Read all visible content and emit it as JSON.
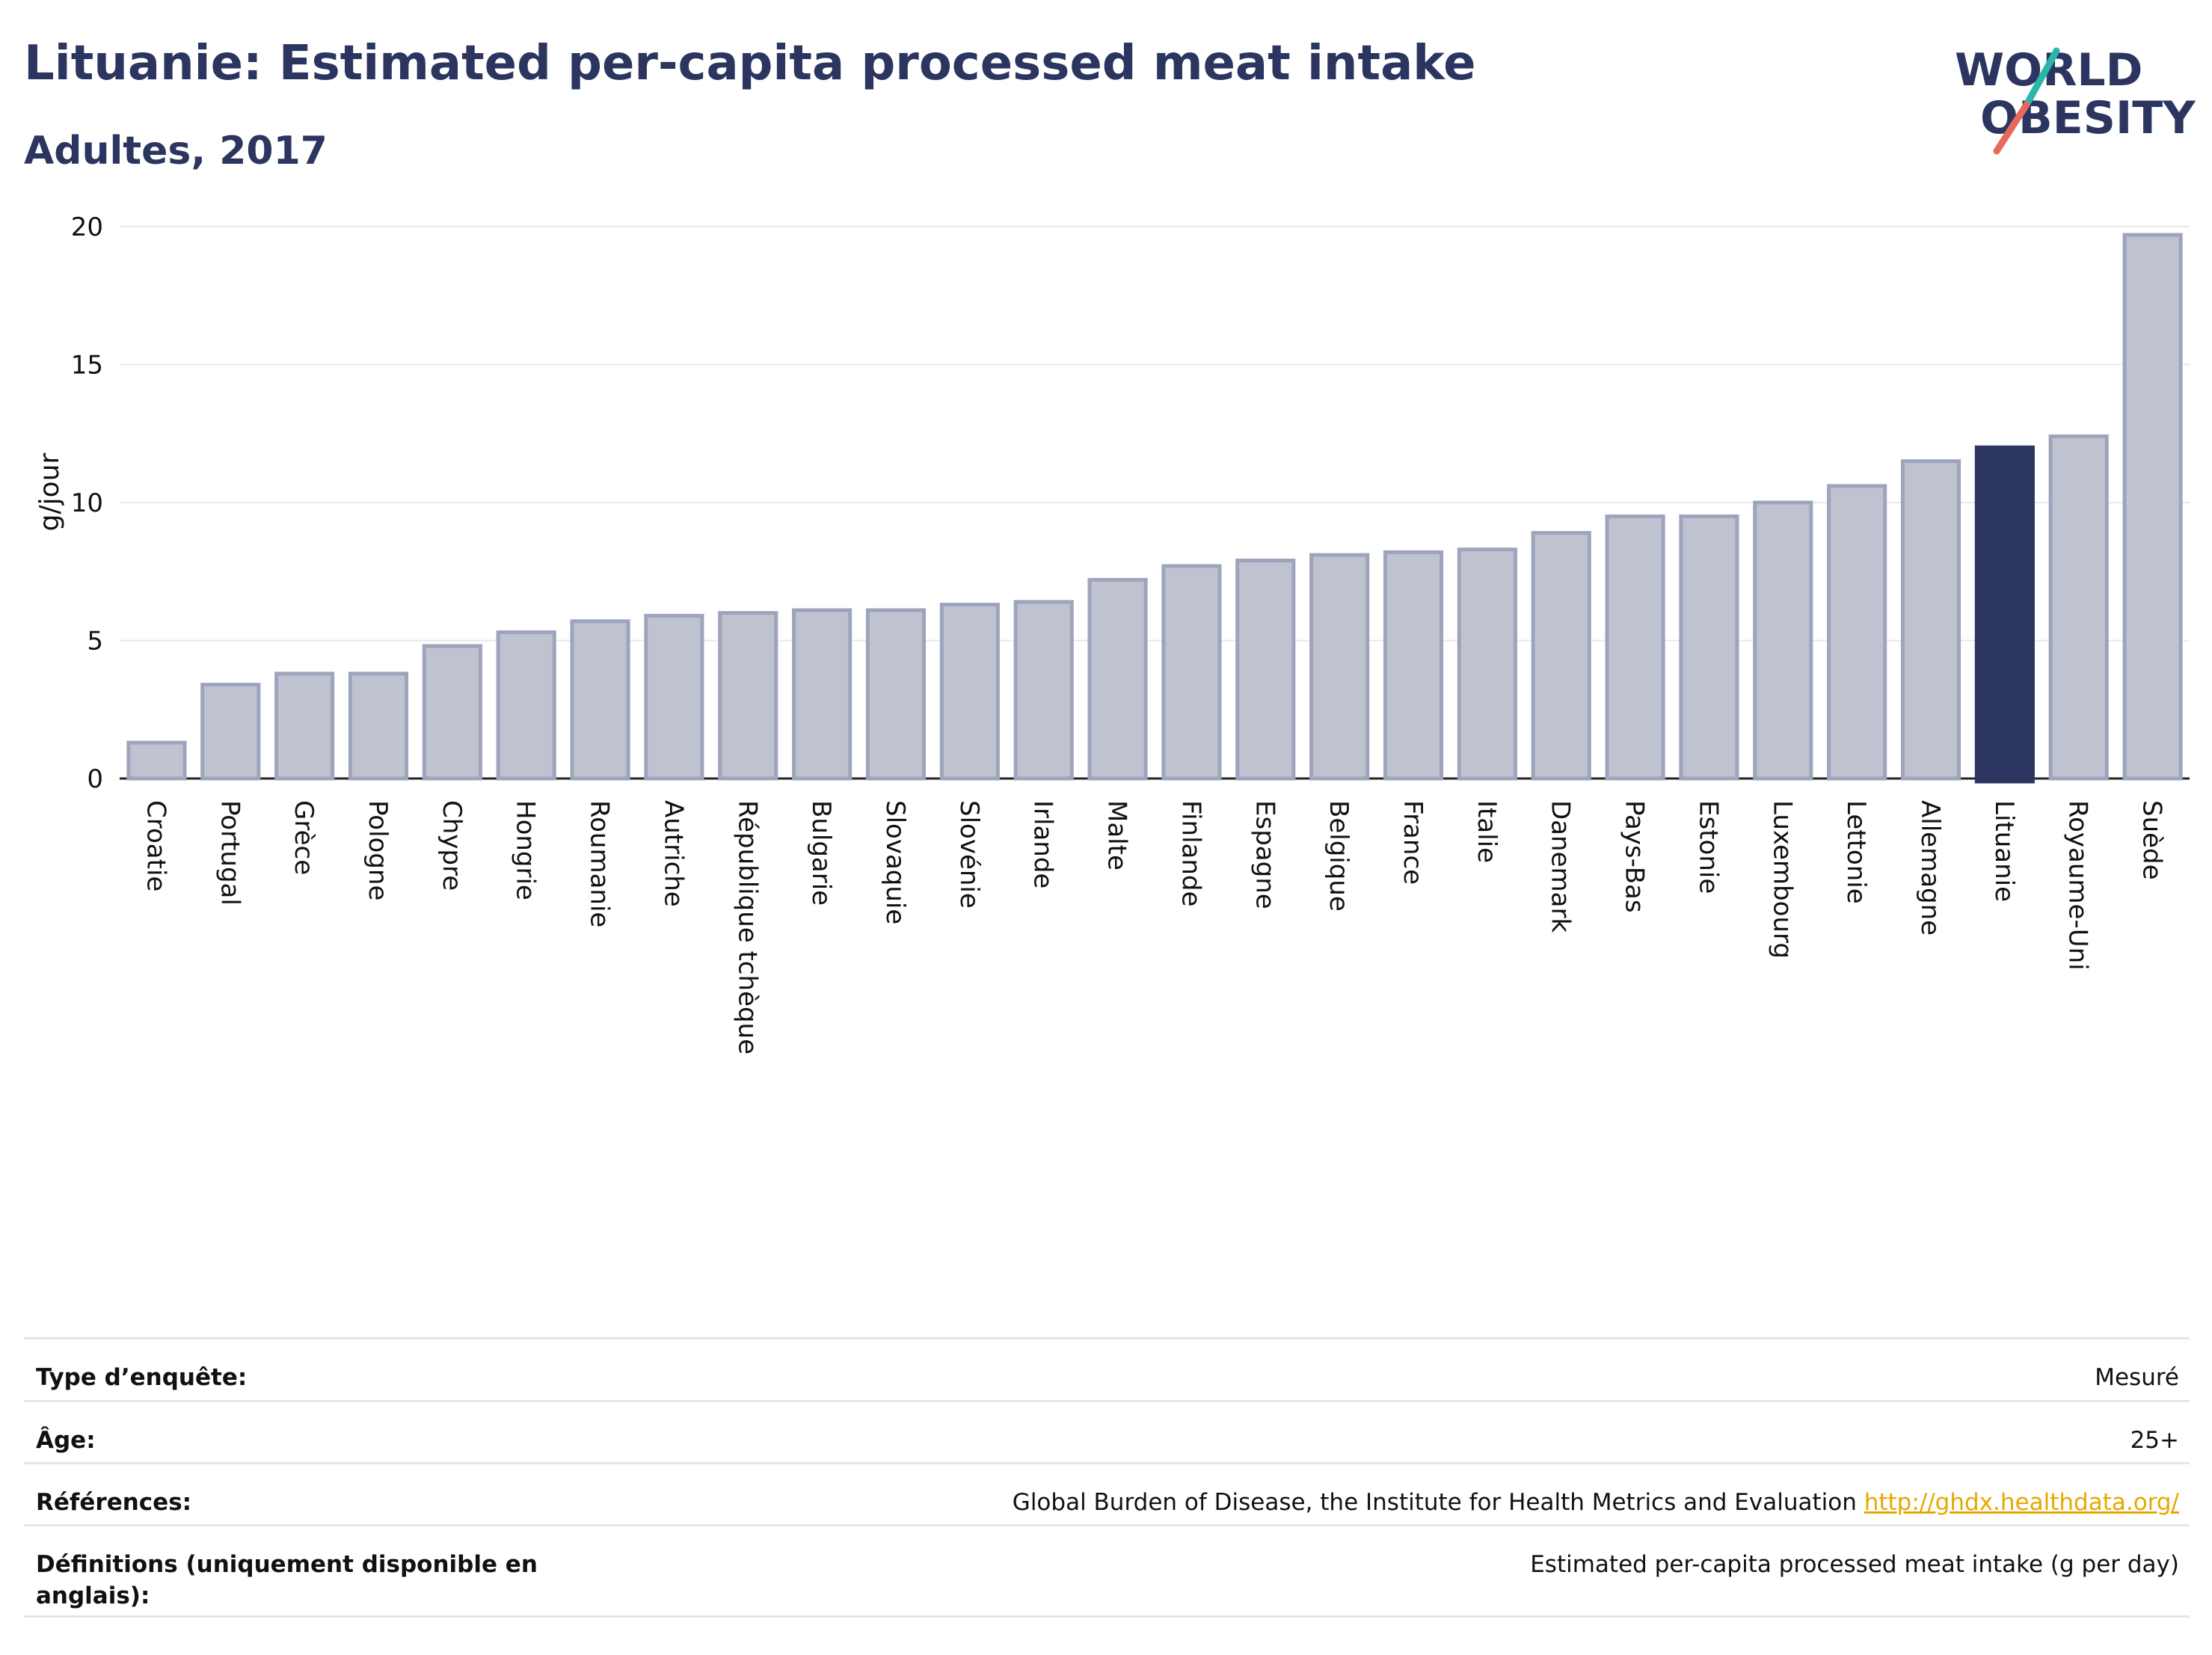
{
  "header": {
    "title": "Lituanie: Estimated per-capita processed meat intake",
    "subtitle": "Adultes, 2017"
  },
  "logo": {
    "line1": "WORLD",
    "line2": "OBESITY",
    "text_color": "#2b3560",
    "slash_colors": [
      "#2ab7a9",
      "#e8685a"
    ]
  },
  "chart_data": {
    "type": "bar",
    "title": "Lituanie: Estimated per-capita processed meat intake",
    "subtitle": "Adultes, 2017",
    "ylabel": "g/jour",
    "xlabel": "",
    "ylim": [
      0,
      20
    ],
    "yticks": [
      0,
      5,
      10,
      15,
      20
    ],
    "grid": true,
    "highlight": "Lituanie",
    "colors": {
      "default_fill": "#bfc3d0",
      "default_stroke": "#9ea4bc",
      "highlight": "#2b3560"
    },
    "categories": [
      "Croatie",
      "Portugal",
      "Grèce",
      "Pologne",
      "Chypre",
      "Hongrie",
      "Roumanie",
      "Autriche",
      "République tchèque",
      "Bulgarie",
      "Slovaquie",
      "Slovénie",
      "Irlande",
      "Malte",
      "Finlande",
      "Espagne",
      "Belgique",
      "France",
      "Italie",
      "Danemark",
      "Pays-Bas",
      "Estonie",
      "Luxembourg",
      "Lettonie",
      "Allemagne",
      "Lituanie",
      "Royaume-Uni",
      "Suède"
    ],
    "values": [
      1.3,
      3.4,
      3.8,
      3.8,
      4.8,
      5.3,
      5.7,
      5.9,
      6.0,
      6.1,
      6.1,
      6.3,
      6.4,
      7.2,
      7.7,
      7.9,
      8.1,
      8.2,
      8.3,
      8.9,
      9.5,
      9.5,
      10.0,
      10.6,
      11.5,
      12.0,
      12.4,
      19.7
    ]
  },
  "info_table": {
    "rows": [
      {
        "label": "Type d’enquête:",
        "value": "Mesuré"
      },
      {
        "label": "Âge:",
        "value": "25+"
      },
      {
        "label": "Références:",
        "value": "Global Burden of Disease, the Institute for Health Metrics and Evaluation",
        "link": "http://ghdx.healthdata.org/"
      },
      {
        "label": "Définitions (uniquement disponible en anglais):",
        "value": "Estimated per-capita processed meat intake (g per day)"
      }
    ]
  }
}
